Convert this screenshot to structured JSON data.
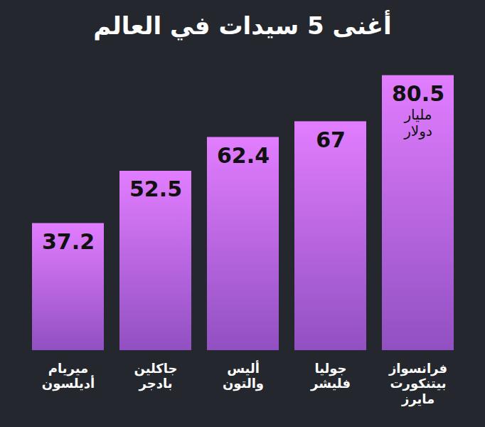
{
  "chart_data": {
    "type": "bar",
    "title": "أغنى 5 سيدات في العالم",
    "categories": [
      "ميريام أديلسون",
      "جاكلين بادجر",
      "أليس والتون",
      "جوليا فليشر",
      "فرانسواز بيتنكورت مايرز"
    ],
    "values": [
      37.2,
      52.5,
      62.4,
      67,
      80.5
    ],
    "color": "#a45bdc",
    "ylim": [
      0,
      85
    ],
    "tick_labels": false,
    "grid": false,
    "data_labels": true,
    "annotations": [
      {
        "text": "مليار دولار",
        "category": "فرانسواز بيتنكورت مايرز"
      }
    ]
  }
}
